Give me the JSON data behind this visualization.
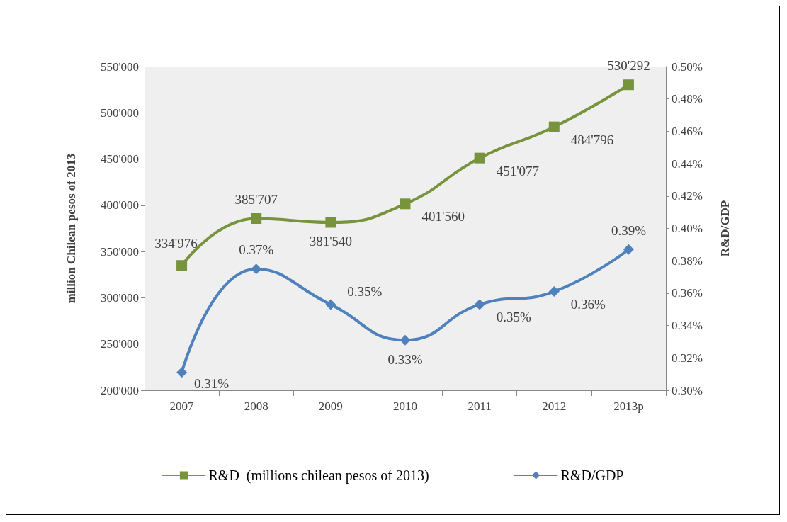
{
  "chart_data": {
    "type": "line",
    "categories": [
      "2007",
      "2008",
      "2009",
      "2010",
      "2011",
      "2012",
      "2013p"
    ],
    "ylabel": "million Chilean pesos of 2013",
    "y2label": "R&D/GDP",
    "ylim": [
      200000,
      550000
    ],
    "yticks": [
      {
        "value": 200000,
        "label": "200'000"
      },
      {
        "value": 250000,
        "label": "250'000"
      },
      {
        "value": 300000,
        "label": "300'000"
      },
      {
        "value": 350000,
        "label": "350'000"
      },
      {
        "value": 400000,
        "label": "400'000"
      },
      {
        "value": 450000,
        "label": "450'000"
      },
      {
        "value": 500000,
        "label": "500'000"
      },
      {
        "value": 550000,
        "label": "550'000"
      }
    ],
    "y2lim": [
      0.3,
      0.5
    ],
    "y2ticks": [
      {
        "value": 0.3,
        "label": "0.30%"
      },
      {
        "value": 0.32,
        "label": "0.32%"
      },
      {
        "value": 0.34,
        "label": "0.34%"
      },
      {
        "value": 0.36,
        "label": "0.36%"
      },
      {
        "value": 0.38,
        "label": "0.38%"
      },
      {
        "value": 0.4,
        "label": "0.40%"
      },
      {
        "value": 0.42,
        "label": "0.42%"
      },
      {
        "value": 0.44,
        "label": "0.44%"
      },
      {
        "value": 0.46,
        "label": "0.46%"
      },
      {
        "value": 0.48,
        "label": "0.48%"
      },
      {
        "value": 0.5,
        "label": "0.50%"
      }
    ],
    "grid": false,
    "legend": "bottom",
    "line_style": "solid",
    "series": [
      {
        "name": "R&D  (millions chilean pesos of 2013)",
        "color": "#77933c",
        "marker": "square",
        "values": [
          334976,
          385707,
          381540,
          401560,
          451077,
          484796,
          530292
        ],
        "value_labels": [
          "334'976",
          "385'707",
          "381'540",
          "401'560",
          "451'077",
          "484'796",
          "530'292"
        ]
      },
      {
        "name": "R&D/GDP",
        "color": "#4f81bd",
        "marker": "diamond",
        "axis": "y2",
        "values": [
          0.311,
          0.375,
          0.353,
          0.331,
          0.353,
          0.361,
          0.387
        ],
        "value_labels": [
          "0.31%",
          "0.37%",
          "0.35%",
          "0.33%",
          "0.35%",
          "0.36%",
          "0.39%"
        ]
      }
    ]
  }
}
